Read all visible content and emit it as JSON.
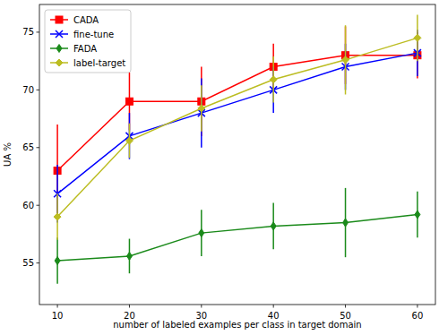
{
  "chart_data": {
    "type": "line",
    "x_label": "number of labeled examples per class in target domain",
    "y_label": "UA %",
    "x": [
      10,
      20,
      30,
      40,
      50,
      60
    ],
    "xlim": [
      7.5,
      62.5
    ],
    "xticks": [
      10,
      20,
      30,
      40,
      50,
      60
    ],
    "ylim": [
      51.4,
      77.4
    ],
    "yticks": [
      55,
      60,
      65,
      70,
      75
    ],
    "grid": false,
    "legend": "upper left",
    "series": [
      {
        "name": "CADA",
        "color": "#ff0000",
        "marker": "square",
        "line_style": "solid",
        "values": [
          63,
          69,
          69,
          72,
          73,
          73
        ],
        "errors": [
          4,
          2.5,
          3,
          2,
          2.5,
          2
        ]
      },
      {
        "name": "fine-tune",
        "color": "#0000ff",
        "marker": "x",
        "line_style": "solid",
        "values": [
          61,
          66,
          68,
          70,
          72,
          73.2
        ],
        "errors": [
          2.5,
          2,
          3,
          2,
          2,
          2
        ]
      },
      {
        "name": "FADA",
        "color": "#1a8a1a",
        "marker": "thin_diamond",
        "line_style": "solid",
        "values": [
          55.2,
          55.6,
          57.6,
          58.2,
          58.5,
          59.2
        ],
        "errors": [
          2,
          1.5,
          2,
          2,
          3,
          2
        ]
      },
      {
        "name": "label-target",
        "color": "#bcbd22",
        "marker": "diamond",
        "line_style": "solid",
        "values": [
          59,
          65.6,
          68.4,
          70.9,
          72.6,
          74.5
        ],
        "errors": [
          2,
          1.5,
          2,
          2,
          3,
          2
        ]
      }
    ]
  }
}
